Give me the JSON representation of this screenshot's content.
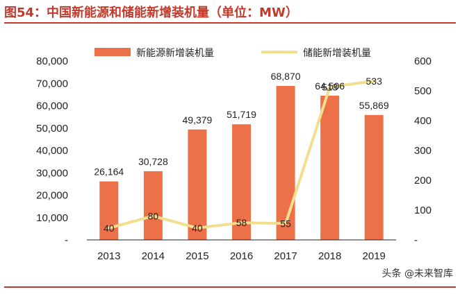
{
  "header": {
    "title": "图54：中国新能源和储能新增装机量（单位：MW）"
  },
  "footer": {
    "watermark": "头条 @未来智库"
  },
  "colors": {
    "bar": "#ED7148",
    "line": "#F2DE8C",
    "accent": "#C0392B"
  },
  "chart_data": {
    "type": "bar",
    "title": "图54：中国新能源和储能新增装机量（单位：MW）",
    "categories": [
      "2013",
      "2014",
      "2015",
      "2016",
      "2017",
      "2018",
      "2019"
    ],
    "series": [
      {
        "name": "新能源新增装机量",
        "type": "bar",
        "axis": "left",
        "values": [
          26164,
          30728,
          49379,
          51719,
          68870,
          64506,
          55869
        ]
      },
      {
        "name": "储能新增装机量",
        "type": "line",
        "axis": "right",
        "values": [
          40,
          80,
          40,
          58,
          55,
          513,
          533
        ]
      }
    ],
    "bar_labels": [
      "26,164",
      "30,728",
      "49,379",
      "51,719",
      "68,870",
      "64,506",
      "55,869"
    ],
    "line_labels": [
      "40",
      "80",
      "40",
      "58",
      "55",
      "513",
      "533"
    ],
    "ylim": [
      0,
      80000
    ],
    "y2lim": [
      0,
      600
    ],
    "yticks": [
      "80,000",
      "70,000",
      "60,000",
      "50,000",
      "40,000",
      "30,000",
      "20,000",
      "10,000",
      "-"
    ],
    "y2ticks": [
      "600",
      "500",
      "400",
      "300",
      "200",
      "100",
      "-"
    ],
    "legend_position": "top",
    "grid": false
  }
}
